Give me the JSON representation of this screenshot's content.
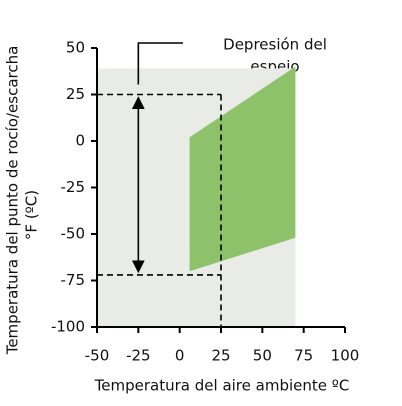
{
  "chart_data": {
    "type": "region",
    "x_label": "Temperatura del aire ambiente ºC",
    "y_label": [
      "Temperatura del punto de  rocío/escarcha",
      "°F (ºC)"
    ],
    "annotation": [
      "Depresión del",
      "espejo"
    ],
    "xlim": [
      -50,
      100
    ],
    "xticks": [
      -50,
      -25,
      0,
      25,
      50,
      75,
      100
    ],
    "ylim": [
      -100,
      50
    ],
    "yticks": [
      -100,
      -75,
      -50,
      -25,
      0,
      25,
      50
    ],
    "background": {
      "x": [
        -50,
        70
      ],
      "y": [
        -100,
        39
      ],
      "color": "#e9ebe6"
    },
    "region": {
      "x": [
        6,
        70,
        70,
        6
      ],
      "y": [
        2,
        40,
        -52,
        -70
      ],
      "color": "#8dc26a"
    },
    "reference": {
      "x": 25,
      "y_top": 25,
      "y_bottom": -72,
      "arrow_x": -25
    }
  }
}
